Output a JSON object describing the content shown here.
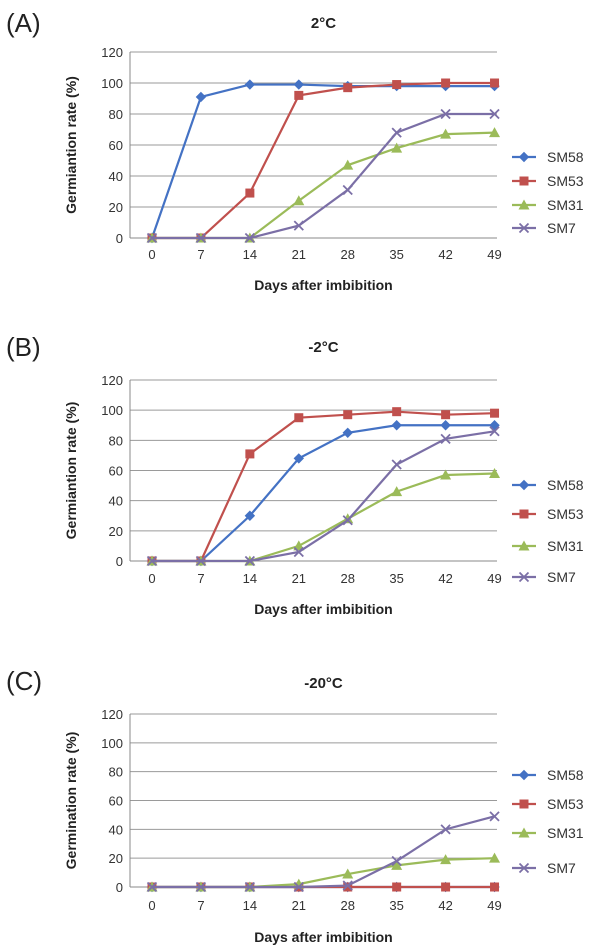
{
  "chart_data": [
    {
      "panel": "(A)",
      "type": "line",
      "title": "2°C",
      "xlabel": "Days after imbibition",
      "ylabel": "Germiantion rate (%)",
      "categories": [
        "0",
        "7",
        "14",
        "21",
        "28",
        "35",
        "42",
        "49"
      ],
      "ylim": [
        0,
        120
      ],
      "yticks": [
        0,
        20,
        40,
        60,
        80,
        100,
        120
      ],
      "grid": true,
      "legend_position": "right",
      "series": [
        {
          "name": "SM58",
          "color": "#4472c4",
          "marker": "diamond",
          "values": [
            0,
            91,
            99,
            99,
            98,
            98,
            98,
            98
          ]
        },
        {
          "name": "SM53",
          "color": "#c0504d",
          "marker": "square",
          "values": [
            0,
            0,
            29,
            92,
            97,
            99,
            100,
            100
          ]
        },
        {
          "name": "SM31",
          "color": "#9bbb59",
          "marker": "triangle",
          "values": [
            0,
            0,
            0,
            24,
            47,
            58,
            67,
            68
          ]
        },
        {
          "name": "SM7",
          "color": "#7b6fa6",
          "marker": "x",
          "values": [
            0,
            0,
            0,
            8,
            31,
            68,
            80,
            80
          ]
        }
      ]
    },
    {
      "panel": "(B)",
      "type": "line",
      "title": "-2°C",
      "xlabel": "Days after imbibition",
      "ylabel": "Germiantion rate (%)",
      "categories": [
        "0",
        "7",
        "14",
        "21",
        "28",
        "35",
        "42",
        "49"
      ],
      "ylim": [
        0,
        120
      ],
      "yticks": [
        0,
        20,
        40,
        60,
        80,
        100,
        120
      ],
      "grid": true,
      "legend_position": "right",
      "series": [
        {
          "name": "SM58",
          "color": "#4472c4",
          "marker": "diamond",
          "values": [
            0,
            0,
            30,
            68,
            85,
            90,
            90,
            90
          ]
        },
        {
          "name": "SM53",
          "color": "#c0504d",
          "marker": "square",
          "values": [
            0,
            0,
            71,
            95,
            97,
            99,
            97,
            98
          ]
        },
        {
          "name": "SM31",
          "color": "#9bbb59",
          "marker": "triangle",
          "values": [
            0,
            0,
            0,
            10,
            28,
            46,
            57,
            58
          ]
        },
        {
          "name": "SM7",
          "color": "#7b6fa6",
          "marker": "x",
          "values": [
            0,
            0,
            0,
            6,
            27,
            64,
            81,
            86
          ]
        }
      ]
    },
    {
      "panel": "(C)",
      "type": "line",
      "title": "-20°C",
      "xlabel": "Days after imbibition",
      "ylabel": "Germination rate (%)",
      "categories": [
        "0",
        "7",
        "14",
        "21",
        "28",
        "35",
        "42",
        "49"
      ],
      "ylim": [
        0,
        120
      ],
      "yticks": [
        0,
        20,
        40,
        60,
        80,
        100,
        120
      ],
      "grid": true,
      "legend_position": "right",
      "series": [
        {
          "name": "SM58",
          "color": "#4472c4",
          "marker": "diamond",
          "values": [
            0,
            0,
            0,
            0,
            0,
            0,
            0,
            0
          ]
        },
        {
          "name": "SM53",
          "color": "#c0504d",
          "marker": "square",
          "values": [
            0,
            0,
            0,
            0,
            0,
            0,
            0,
            0
          ]
        },
        {
          "name": "SM31",
          "color": "#9bbb59",
          "marker": "triangle",
          "values": [
            0,
            0,
            0,
            2,
            9,
            15,
            19,
            20
          ]
        },
        {
          "name": "SM7",
          "color": "#7b6fa6",
          "marker": "x",
          "values": [
            0,
            0,
            0,
            0,
            1,
            18,
            40,
            49
          ]
        }
      ]
    }
  ]
}
